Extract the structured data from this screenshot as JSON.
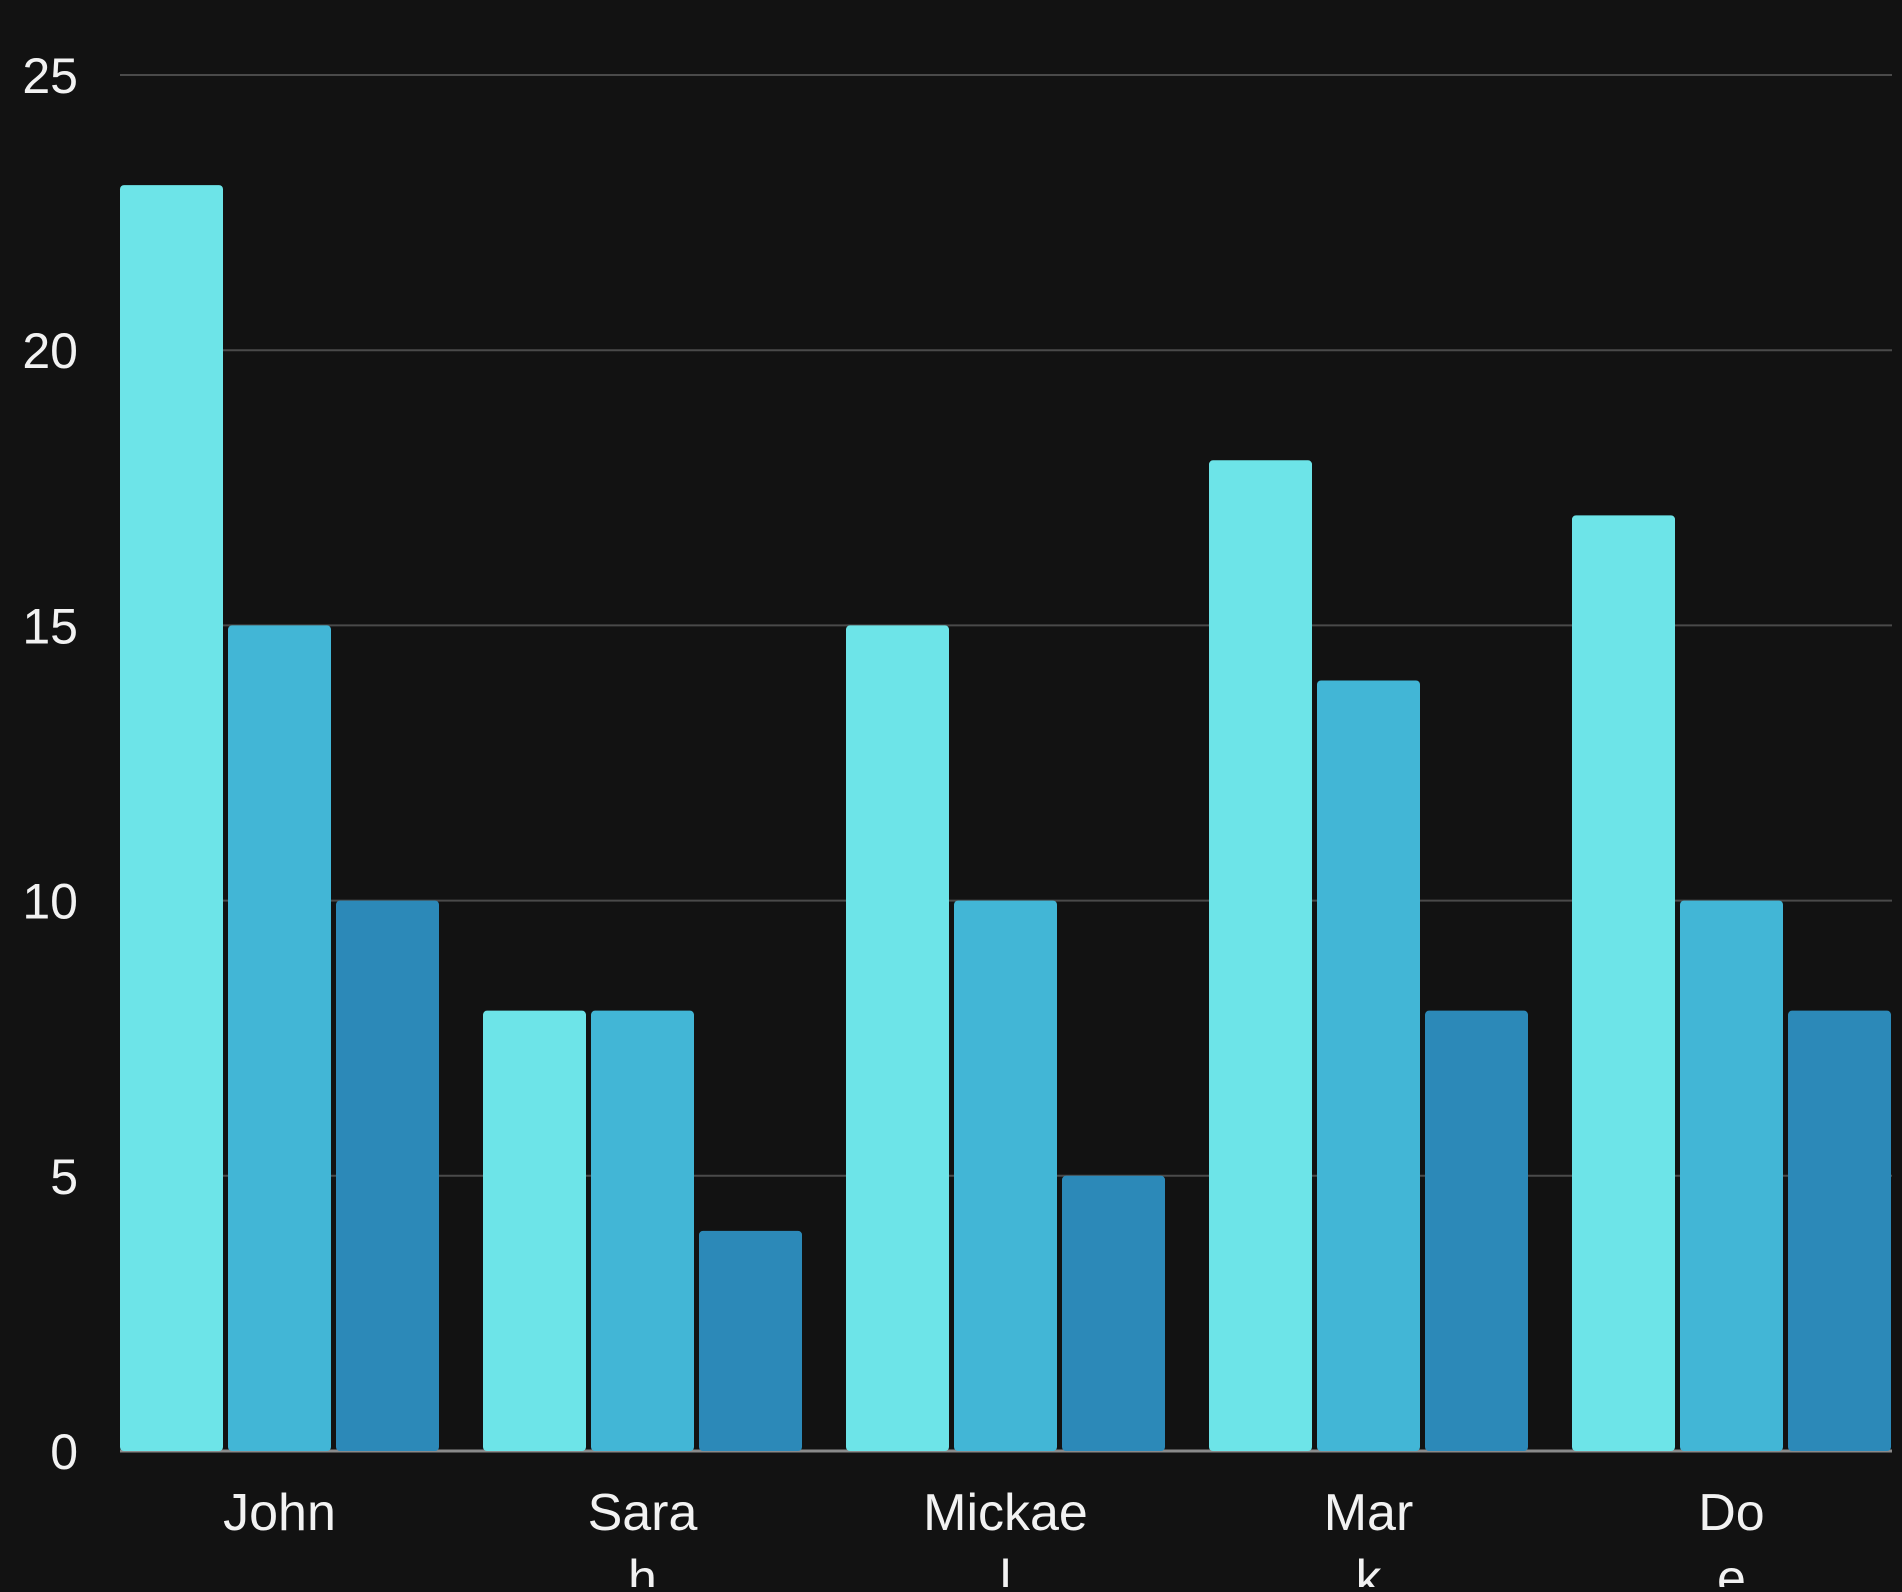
{
  "chart_data": {
    "type": "bar",
    "categories": [
      "John",
      "Sarah",
      "Mickael",
      "Mark",
      "Doe"
    ],
    "category_label_lines": [
      [
        "John"
      ],
      [
        "Sara",
        "h"
      ],
      [
        "Mickae",
        "l"
      ],
      [
        "Mar",
        "k"
      ],
      [
        "Do",
        "e"
      ]
    ],
    "series": [
      {
        "values": [
          23,
          8,
          15,
          18,
          17
        ],
        "color": "#6de4e8"
      },
      {
        "values": [
          15,
          8,
          10,
          14,
          10
        ],
        "color": "#42b6d6"
      },
      {
        "values": [
          10,
          4,
          5,
          8,
          8
        ],
        "color": "#2c89b8"
      }
    ],
    "yticks": [
      0,
      5,
      10,
      15,
      20,
      25
    ],
    "ylim": [
      0,
      25
    ],
    "grid": true,
    "title": "",
    "xlabel": "",
    "ylabel": "",
    "colors": {
      "background": "#121212",
      "grid": "#4a4a4a",
      "text": "#f2f2f2"
    }
  }
}
